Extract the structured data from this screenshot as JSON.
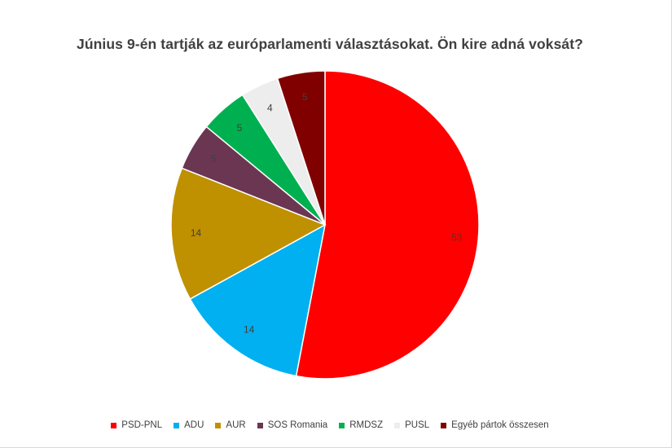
{
  "chart_data": {
    "type": "pie",
    "title": "Június 9-én tartják az európarlamenti választásokat. Ön kire adná voksát?",
    "legend_position": "bottom",
    "slices": [
      {
        "name": "PSD-PNL",
        "value": 53,
        "color": "#ff0000",
        "label_color": "#7f1f1f"
      },
      {
        "name": "ADU",
        "value": 14,
        "color": "#00b0f0",
        "label_color": "#404040"
      },
      {
        "name": "AUR",
        "value": 14,
        "color": "#bf9000",
        "label_color": "#404040"
      },
      {
        "name": "SOS Romania",
        "value": 5,
        "color": "#6b3651",
        "label_color": "#404040"
      },
      {
        "name": "RMDSZ",
        "value": 5,
        "color": "#00b050",
        "label_color": "#404040"
      },
      {
        "name": "PUSL",
        "value": 4,
        "color": "#ededed",
        "label_color": "#404040"
      },
      {
        "name": "Egyéb pártok összesen",
        "value": 5,
        "color": "#800000",
        "label_color": "#404040"
      }
    ]
  }
}
